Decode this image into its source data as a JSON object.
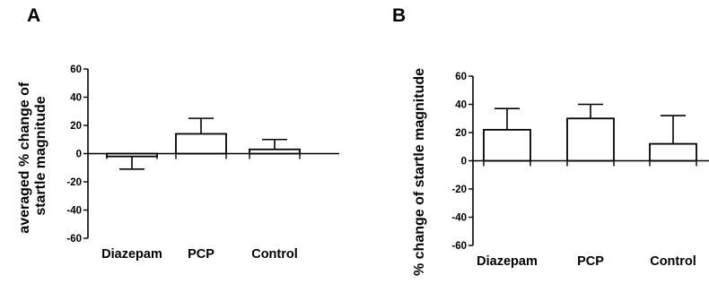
{
  "chart_data": [
    {
      "panel": "A",
      "type": "bar",
      "ylabel_lines": [
        "averaged % change of",
        "startle magnitude"
      ],
      "categories": [
        "Diazepam",
        "PCP",
        "Control"
      ],
      "values": [
        -2,
        14,
        3
      ],
      "error_upper": [
        -2,
        25,
        10
      ],
      "error_lower": [
        -11,
        14,
        3
      ],
      "ylim": [
        -60,
        60
      ],
      "yticks": [
        "60",
        "40",
        "20",
        "0",
        "-20",
        "-40",
        "-60"
      ],
      "bar_color": "#ffffff",
      "edge_color": "#000000"
    },
    {
      "panel": "B",
      "type": "bar",
      "ylabel_lines": [
        "% change of startle magnitude"
      ],
      "categories": [
        "Diazepam",
        "PCP",
        "Control"
      ],
      "values": [
        22,
        30,
        12
      ],
      "error_upper": [
        37,
        40,
        32
      ],
      "error_lower": [
        22,
        30,
        12
      ],
      "ylim": [
        -60,
        60
      ],
      "yticks": [
        "60",
        "40",
        "20",
        "0",
        "-20",
        "-40",
        "-60"
      ],
      "bar_color": "#ffffff",
      "edge_color": "#000000"
    }
  ]
}
